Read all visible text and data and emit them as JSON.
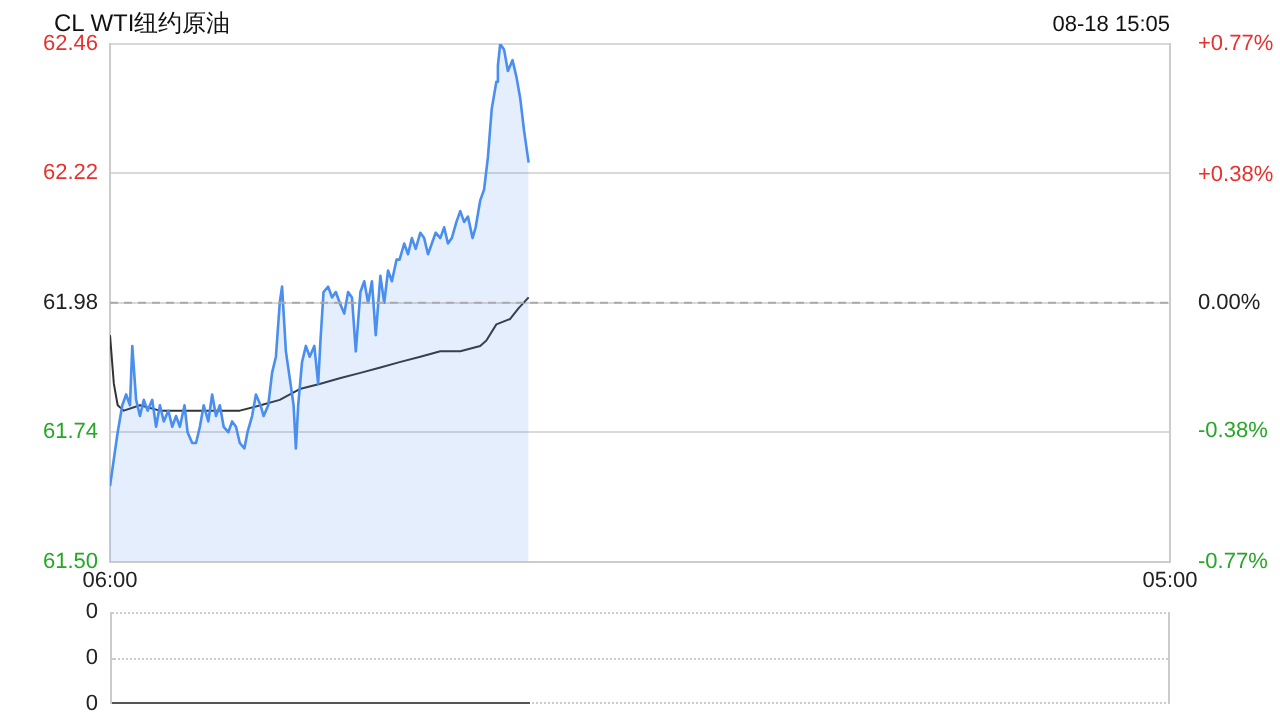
{
  "chart_data": [
    {
      "type": "line",
      "title": "CL WTI纽约原油",
      "subtitle": "08-18 15:05",
      "xlim": [
        "--08-18T06:00",
        "--08-19T05:00"
      ],
      "xticks": [
        {
          "value": "--08-18T06:00",
          "label": "06:00"
        },
        {
          "value": "--08-19T05:00",
          "label": "05:00"
        }
      ],
      "ylim": [
        61.5,
        62.46
      ],
      "yticks": [
        {
          "value": 61.5,
          "label": "61.50"
        },
        61.74,
        61.98,
        62.22,
        62.46
      ],
      "y2lim": [
        -0.77,
        0.77
      ],
      "y2ticks": [
        {
          "value": -0.77,
          "label": "-0.77%"
        },
        {
          "value": -0.38,
          "label": "-0.38%"
        },
        {
          "value": 0,
          "label": "0.00%"
        },
        {
          "value": 0.38,
          "label": "+0.38%"
        },
        {
          "value": 0.77,
          "label": "+0.77%"
        }
      ],
      "grid": "y",
      "marker": "none",
      "ref_lines": [
        {
          "axis": "y",
          "value": 61.98,
          "color": "#aaaaaa",
          "line_style": "dashed"
        }
      ],
      "series": [
        {
          "type": "area",
          "color": "#4a8ef0",
          "x": [
            "--08-18T06:00",
            "--08-18T06:05",
            "--08-18T06:10",
            "--08-18T06:16",
            "--08-18T06:21",
            "--08-18T06:26",
            "--08-18T06:29",
            "--08-18T06:34",
            "--08-18T06:39",
            "--08-18T06:44",
            "--08-18T06:49",
            "--08-18T06:55",
            "--08-18T07:00",
            "--08-18T07:05",
            "--08-18T07:10",
            "--08-18T07:16",
            "--08-18T07:21",
            "--08-18T07:26",
            "--08-18T07:31",
            "--08-18T07:37",
            "--08-18T07:41",
            "--08-18T07:47",
            "--08-18T07:52",
            "--08-18T07:57",
            "--08-18T08:02",
            "--08-18T08:08",
            "--08-18T08:13",
            "--08-18T08:18",
            "--08-18T08:23",
            "--08-18T08:28",
            "--08-18T08:34",
            "--08-18T08:39",
            "--08-18T08:44",
            "--08-18T08:49",
            "--08-18T08:55",
            "--08-18T08:59",
            "--08-18T09:05",
            "--08-18T09:10",
            "--08-18T09:16",
            "--08-18T09:20",
            "--08-18T09:26",
            "--08-18T09:31",
            "--08-18T09:36",
            "--08-18T09:41",
            "--08-18T09:44",
            "--08-18T09:49",
            "--08-18T09:55",
            "--08-18T09:59",
            "--08-18T10:02",
            "--08-18T10:05",
            "--08-18T10:10",
            "--08-18T10:15",
            "--08-18T10:20",
            "--08-18T10:26",
            "--08-18T10:31",
            "--08-18T10:34",
            "--08-18T10:38",
            "--08-18T10:44",
            "--08-18T10:49",
            "--08-18T10:54",
            "--08-18T10:59",
            "--08-18T11:05",
            "--08-18T11:10",
            "--08-18T11:15",
            "--08-18T11:20",
            "--08-18T11:26",
            "--08-18T11:31",
            "--08-18T11:36",
            "--08-18T11:41",
            "--08-18T11:46",
            "--08-18T11:52",
            "--08-18T11:57",
            "--08-18T12:02",
            "--08-18T12:07",
            "--08-18T12:13",
            "--08-18T12:17",
            "--08-18T12:23",
            "--08-18T12:28",
            "--08-18T12:33",
            "--08-18T12:38",
            "--08-18T12:44",
            "--08-18T12:49",
            "--08-18T12:54",
            "--08-18T12:59",
            "--08-18T13:04",
            "--08-18T13:10",
            "--08-18T13:15",
            "--08-18T13:20",
            "--08-18T13:25",
            "--08-18T13:31",
            "--08-18T13:36",
            "--08-18T13:41",
            "--08-18T13:46",
            "--08-18T13:52",
            "--08-18T13:56",
            "--08-18T14:02",
            "--08-18T14:07",
            "--08-18T14:12",
            "--08-18T14:17",
            "--08-18T14:23",
            "--08-18T14:25",
            "--08-18T14:28",
            "--08-18T14:33",
            "--08-18T14:38",
            "--08-18T14:44",
            "--08-18T14:49",
            "--08-18T14:54",
            "--08-18T14:59",
            "--08-18T15:05"
          ],
          "values": [
            61.64,
            61.69,
            61.74,
            61.79,
            61.81,
            61.79,
            61.9,
            61.8,
            61.77,
            61.8,
            61.78,
            61.8,
            61.75,
            61.79,
            61.76,
            61.78,
            61.75,
            61.77,
            61.75,
            61.79,
            61.74,
            61.72,
            61.72,
            61.75,
            61.79,
            61.76,
            61.81,
            61.77,
            61.79,
            61.75,
            61.74,
            61.76,
            61.75,
            61.72,
            61.71,
            61.74,
            61.77,
            61.81,
            61.79,
            61.77,
            61.79,
            61.85,
            61.88,
            61.98,
            62.01,
            61.89,
            61.83,
            61.79,
            61.71,
            61.79,
            61.87,
            61.9,
            61.88,
            61.9,
            61.83,
            61.91,
            62.0,
            62.01,
            61.99,
            62.0,
            61.98,
            61.96,
            62.0,
            61.99,
            61.89,
            62.0,
            62.02,
            61.98,
            62.02,
            61.92,
            62.03,
            61.98,
            62.04,
            62.02,
            62.06,
            62.06,
            62.09,
            62.07,
            62.1,
            62.08,
            62.11,
            62.1,
            62.07,
            62.09,
            62.11,
            62.1,
            62.12,
            62.09,
            62.1,
            62.13,
            62.15,
            62.13,
            62.14,
            62.1,
            62.12,
            62.17,
            62.19,
            62.25,
            62.34,
            62.39,
            62.42,
            62.46,
            62.45,
            62.41,
            62.43,
            62.4,
            62.36,
            62.3,
            62.24
          ]
        },
        {
          "type": "line",
          "color": "#333333",
          "x": [
            "--08-18T06:00",
            "--08-18T06:05",
            "--08-18T06:10",
            "--08-18T06:18",
            "--08-18T06:39",
            "--08-18T07:05",
            "--08-18T07:31",
            "--08-18T07:57",
            "--08-18T08:23",
            "--08-18T08:49",
            "--08-18T09:16",
            "--08-18T09:41",
            "--08-18T10:07",
            "--08-18T10:34",
            "--08-18T10:59",
            "--08-18T11:26",
            "--08-18T11:52",
            "--08-18T12:17",
            "--08-18T12:44",
            "--08-18T13:10",
            "--08-18T13:36",
            "--08-18T14:02",
            "--08-18T14:10",
            "--08-18T14:23",
            "--08-18T14:41",
            "--08-18T14:52",
            "--08-18T15:05"
          ],
          "values": [
            61.92,
            61.83,
            61.79,
            61.78,
            61.79,
            61.78,
            61.78,
            61.78,
            61.78,
            61.78,
            61.79,
            61.8,
            61.82,
            61.83,
            61.84,
            61.85,
            61.86,
            61.87,
            61.88,
            61.89,
            61.89,
            61.9,
            61.91,
            61.94,
            61.95,
            61.97,
            61.99
          ]
        }
      ]
    },
    {
      "type": "other",
      "annotations": [
        "0",
        "0",
        "0"
      ]
    }
  ]
}
